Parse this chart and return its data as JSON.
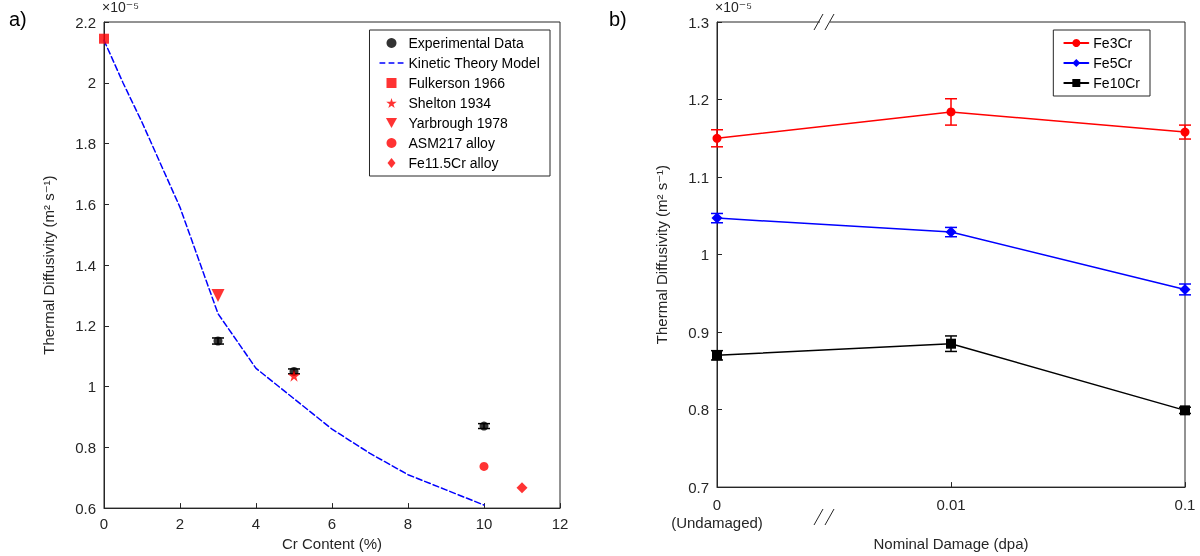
{
  "chart_data": [
    {
      "type": "scatter",
      "title": "a)",
      "xlabel": "Cr Content (%)",
      "ylabel": "Thermal Diffusivity (m² s⁻¹)",
      "annotations": [
        "×10⁻⁵"
      ],
      "xlim": [
        0,
        12
      ],
      "xticks": [
        0,
        2,
        4,
        6,
        8,
        10,
        12
      ],
      "ylim": [
        0.6,
        2.2
      ],
      "yticks": [
        0.6,
        0.8,
        1,
        1.2,
        1.4,
        1.6,
        1.8,
        2,
        2.2
      ],
      "grid": false,
      "legend": "top right",
      "series": [
        {
          "name": "Experimental Data",
          "color": "#000000",
          "marker": "circle",
          "x": [
            3,
            5,
            10
          ],
          "values": [
            1.15,
            1.05,
            0.87
          ],
          "errors": [
            0.01,
            0.008,
            0.008
          ]
        },
        {
          "name": "Kinetic Theory Model",
          "type": "line",
          "color": "#0000ff",
          "line_style": "dashed",
          "marker": "none",
          "x": [
            0,
            0.5,
            1,
            2,
            3,
            4,
            5,
            6,
            7,
            8,
            9,
            10
          ],
          "values": [
            2.14,
            2.0,
            1.87,
            1.59,
            1.24,
            1.06,
            0.96,
            0.86,
            0.78,
            0.71,
            0.66,
            0.61
          ]
        },
        {
          "name": "Fulkerson 1966",
          "color": "#ff0000",
          "marker": "square",
          "x": [
            0
          ],
          "values": [
            2.145
          ]
        },
        {
          "name": "Shelton 1934",
          "color": "#ff0000",
          "marker": "star",
          "x": [
            5
          ],
          "values": [
            1.036
          ]
        },
        {
          "name": "Yarbrough 1978",
          "color": "#ff0000",
          "marker": "triangle-down",
          "x": [
            3
          ],
          "values": [
            1.3
          ]
        },
        {
          "name": "ASM217 alloy",
          "color": "#ff0000",
          "marker": "circle",
          "x": [
            10
          ],
          "values": [
            0.737
          ]
        },
        {
          "name": "Fe11.5Cr alloy",
          "color": "#ff0000",
          "marker": "diamond",
          "x": [
            11
          ],
          "values": [
            0.667
          ]
        }
      ]
    },
    {
      "type": "line",
      "title": "b)",
      "xlabel": "Nominal Damage (dpa)",
      "ylabel": "Thermal Diffusivity (m² s⁻¹)",
      "annotations": [
        "×10⁻⁵"
      ],
      "categories": [
        "0\n(Undamaged)",
        "0.01",
        "0.1"
      ],
      "ylim": [
        0.7,
        1.3
      ],
      "yticks": [
        0.7,
        0.8,
        0.9,
        1,
        1.1,
        1.2,
        1.3
      ],
      "grid": false,
      "legend": "top right",
      "line_style": "solid",
      "series": [
        {
          "name": "Fe3Cr",
          "color": "#ff0000",
          "marker": "circle",
          "values": [
            1.15,
            1.184,
            1.158
          ],
          "errors": [
            0.011,
            0.017,
            0.009
          ]
        },
        {
          "name": "Fe5Cr",
          "color": "#0000ff",
          "marker": "diamond",
          "values": [
            1.047,
            1.029,
            0.955
          ],
          "errors": [
            0.006,
            0.006,
            0.007
          ]
        },
        {
          "name": "Fe10Cr",
          "color": "#000000",
          "marker": "square",
          "values": [
            0.87,
            0.885,
            0.799
          ],
          "errors": [
            0.006,
            0.01,
            0.004
          ]
        }
      ]
    }
  ]
}
